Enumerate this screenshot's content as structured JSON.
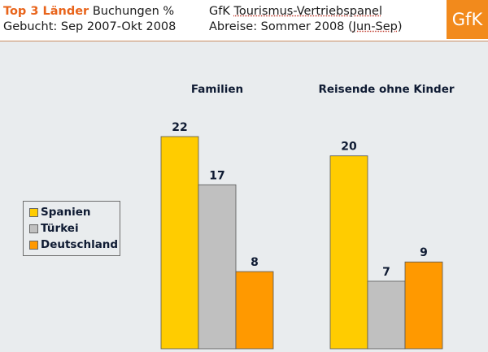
{
  "header": {
    "title_accent": "Top 3 Länder",
    "title_rest": "Buchungen %",
    "subtitle_left": "Gebucht: Sep 2007-Okt 2008",
    "panel_prefix": "GfK",
    "panel_name": "Tourismus-Vertriebspanel",
    "travel_prefix": "Abreise: Sommer 2008 (",
    "travel_period": "Jun-Sep",
    "travel_suffix": ")",
    "logo_text": "GfK"
  },
  "colors": {
    "accent": "#e8641b",
    "logo_bg": "#f28a1c",
    "Spanien": "#ffcc00",
    "Türkei": "#c0c0c0",
    "Deutschland": "#ff9900"
  },
  "chart_data": {
    "type": "bar",
    "title": "Top 3 Länder Buchungen %",
    "categories": [
      "Familien",
      "Reisende ohne Kinder"
    ],
    "series": [
      {
        "name": "Spanien",
        "values": [
          22,
          20
        ]
      },
      {
        "name": "Türkei",
        "values": [
          17,
          7
        ]
      },
      {
        "name": "Deutschland",
        "values": [
          8,
          9
        ]
      }
    ],
    "xlabel": "",
    "ylabel": "",
    "ylim": [
      0,
      22
    ],
    "grid": false,
    "legend": "left"
  }
}
